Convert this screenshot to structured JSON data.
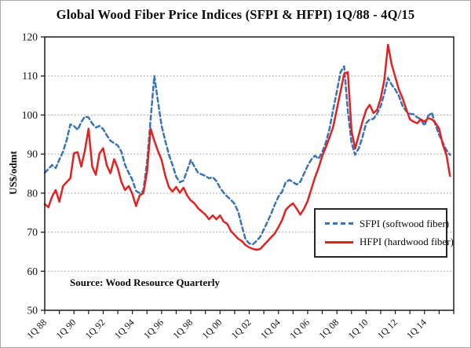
{
  "title": "Global Wood Fiber Price Indices (SFPI & HFPI) 1Q/88 - 4Q/15",
  "source": "Source: Wood Resource Quarterly",
  "legend": {
    "sfpi": "SFPI (softwood fiber)",
    "hfpi": "HFPI (hardwood fiber)"
  },
  "colors": {
    "sfpi": "#3a74b8",
    "hfpi": "#e02222",
    "grid": "#9a9a9a",
    "axis": "#1a1a1a",
    "text": "#111111"
  },
  "chart_data": {
    "type": "line",
    "title": "Global Wood Fiber Price Indices (SFPI & HFPI) 1Q/88 - 4Q/15",
    "xlabel": "",
    "ylabel": "US$/odmt",
    "ylim": [
      50,
      120
    ],
    "y_ticks": [
      50,
      60,
      70,
      80,
      90,
      100,
      110,
      120
    ],
    "x_start": "1Q/88",
    "x_end": "4Q/15",
    "x_unit": "quarter",
    "x_minor_tick_every_quarters": 4,
    "x_tick_labels": [
      "1Q 88",
      "1Q 90",
      "1Q 92",
      "1Q 94",
      "1Q 96",
      "1Q 98",
      "1Q 00",
      "1Q 02",
      "1Q 04",
      "1Q 06",
      "1Q 08",
      "1Q 10",
      "1Q 12",
      "1Q 14"
    ],
    "grid": "horizontal-dotted",
    "legend_position": "right-middle",
    "series": [
      {
        "name": "SFPI (softwood fiber)",
        "style": "dashed",
        "color": "#3a74b8",
        "values": [
          85.2,
          86.2,
          87.2,
          86.4,
          88.6,
          90.6,
          93.6,
          97.6,
          97.2,
          96.2,
          98.2,
          99.6,
          99.4,
          97.8,
          96.8,
          97.2,
          96.4,
          94.8,
          93.4,
          92.8,
          92.2,
          90.6,
          87.2,
          85.2,
          83.4,
          80.6,
          80.0,
          80.6,
          88.0,
          99.0,
          110.0,
          103.5,
          97.2,
          93.4,
          89.8,
          87.2,
          84.2,
          82.8,
          83.2,
          85.8,
          88.5,
          86.8,
          85.2,
          84.8,
          84.4,
          83.8,
          84.1,
          83.1,
          81.4,
          80.1,
          79.1,
          78.3,
          77.2,
          75.2,
          71.5,
          68.2,
          67.1,
          66.9,
          67.8,
          68.8,
          70.7,
          72.7,
          74.7,
          77.1,
          79.1,
          80.4,
          82.8,
          83.4,
          82.8,
          82.2,
          82.9,
          85.0,
          87.0,
          88.6,
          89.6,
          88.8,
          90.5,
          93.0,
          96.5,
          101.5,
          106.0,
          111.0,
          112.5,
          101.0,
          92.9,
          89.8,
          91.5,
          94.3,
          97.9,
          98.9,
          99.0,
          100.3,
          102.3,
          105.5,
          109.5,
          107.8,
          106.5,
          104.9,
          102.3,
          101.0,
          100.3,
          100.2,
          99.4,
          98.9,
          97.3,
          99.8,
          100.6,
          97.5,
          94.9,
          93.0,
          91.0,
          89.8
        ]
      },
      {
        "name": "HFPI (hardwood fiber)",
        "style": "solid",
        "color": "#e02222",
        "values": [
          77.2,
          76.4,
          79.1,
          80.8,
          77.8,
          81.8,
          82.8,
          83.8,
          90.2,
          90.5,
          86.8,
          91.0,
          96.5,
          86.8,
          84.7,
          90.2,
          91.5,
          87.1,
          85.1,
          88.7,
          86.4,
          82.8,
          80.8,
          81.8,
          79.8,
          76.7,
          79.4,
          80.0,
          85.4,
          96.5,
          93.4,
          90.8,
          88.5,
          84.5,
          81.5,
          80.4,
          81.6,
          80.1,
          81.4,
          79.4,
          78.1,
          77.4,
          76.1,
          75.3,
          74.5,
          73.3,
          74.3,
          73.3,
          74.3,
          72.7,
          72.1,
          70.3,
          69.3,
          68.3,
          67.7,
          66.7,
          66.1,
          65.7,
          65.5,
          65.7,
          66.7,
          67.7,
          68.7,
          69.7,
          71.3,
          73.1,
          75.7,
          76.7,
          77.4,
          76.0,
          74.5,
          76.0,
          78.0,
          81.0,
          84.0,
          86.5,
          89.5,
          91.8,
          94.3,
          97.0,
          101.5,
          106.0,
          110.5,
          111.0,
          96.0,
          91.4,
          94.9,
          98.3,
          101.3,
          102.6,
          100.5,
          101.3,
          104.3,
          109.0,
          118.0,
          113.0,
          109.7,
          106.5,
          104.3,
          101.5,
          98.9,
          98.3,
          97.9,
          98.9,
          98.3,
          99.2,
          98.9,
          98.0,
          96.5,
          92.5,
          89.8,
          84.4
        ]
      }
    ]
  }
}
